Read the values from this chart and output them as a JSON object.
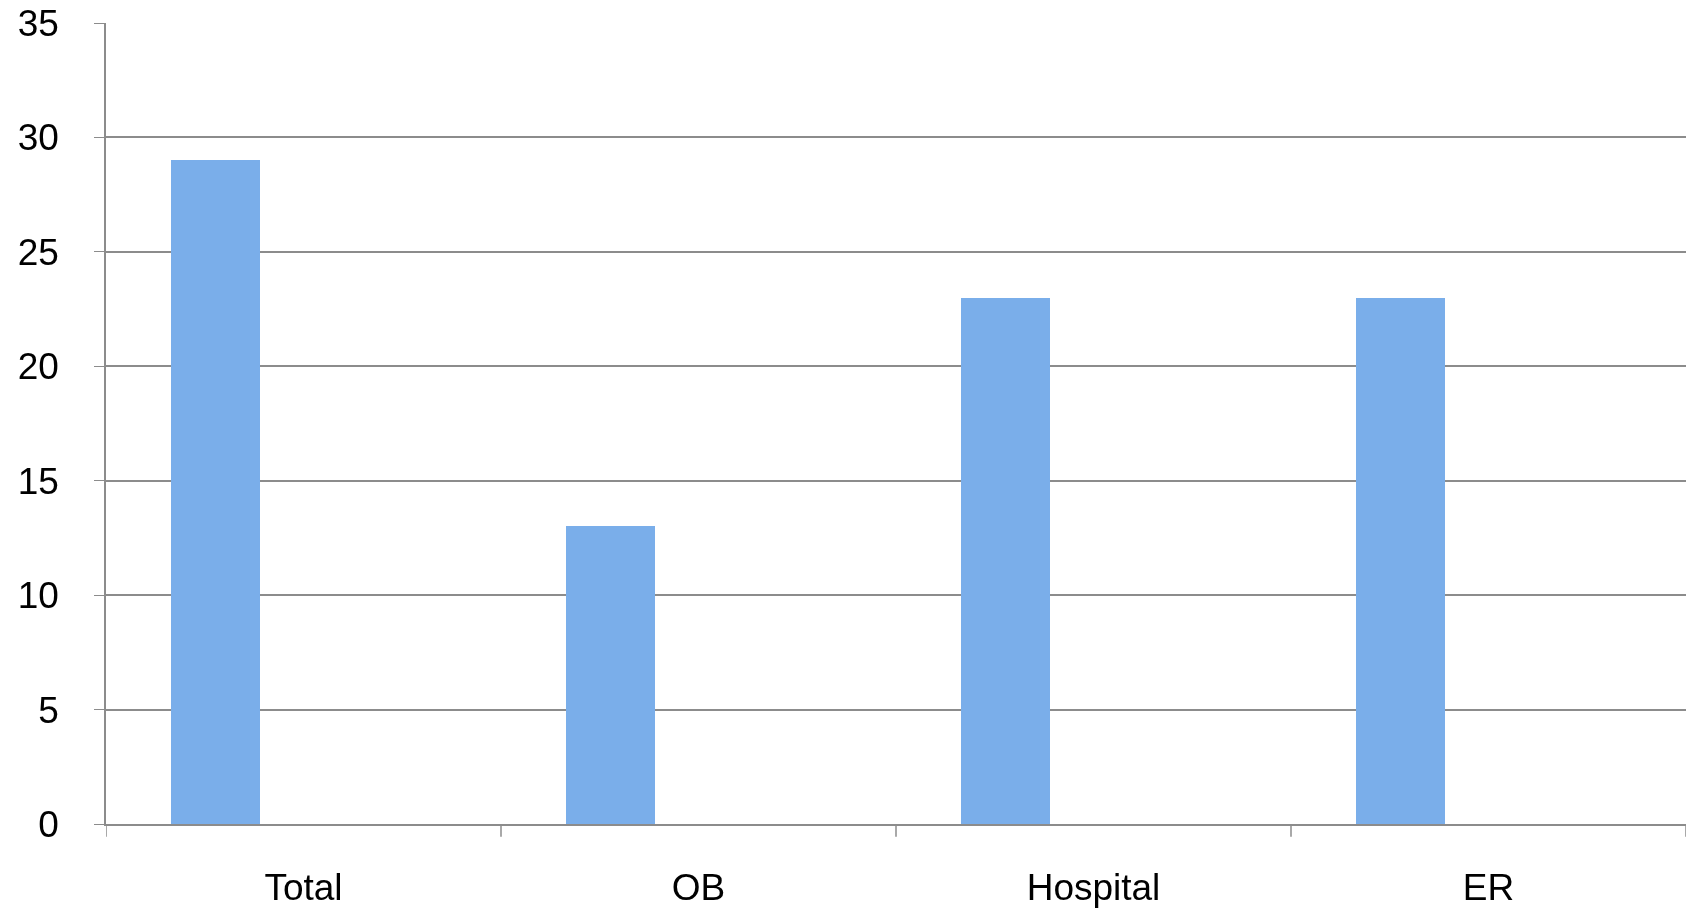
{
  "chart_data": {
    "type": "bar",
    "categories": [
      "Total",
      "OB",
      "Hospital",
      "ER"
    ],
    "values": [
      29,
      13,
      23,
      23
    ],
    "color": "#7aaeea",
    "ylim": [
      0,
      35
    ],
    "yticks": [
      0,
      5,
      10,
      15,
      20,
      25,
      30,
      35
    ],
    "grid": "y"
  }
}
